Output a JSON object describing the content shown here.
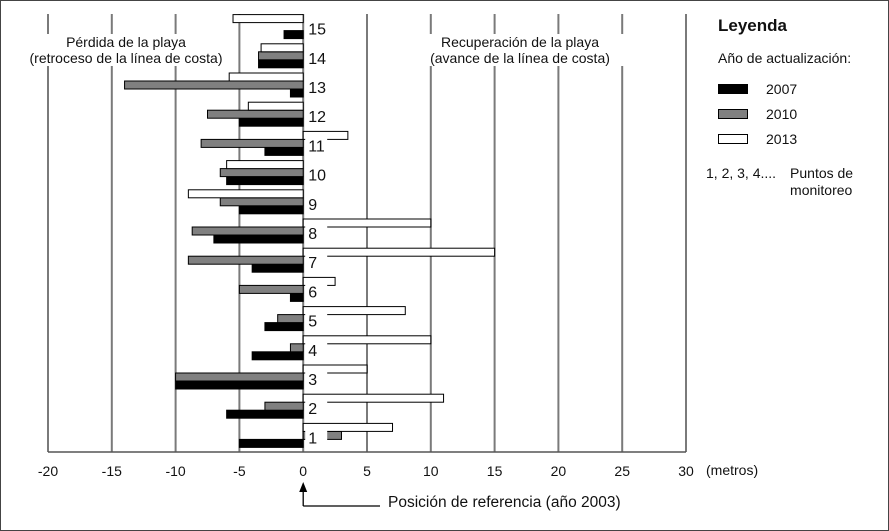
{
  "chart_data": {
    "type": "bar",
    "orientation": "horizontal",
    "categories": [
      "1",
      "2",
      "3",
      "4",
      "5",
      "6",
      "7",
      "8",
      "9",
      "10",
      "11",
      "12",
      "13",
      "14",
      "15"
    ],
    "series": [
      {
        "name": "2007",
        "color": "#000000",
        "values": [
          -5,
          -6,
          -10,
          -4,
          -3,
          -1,
          -4,
          -7,
          -5,
          -6,
          -3,
          -5,
          -1,
          -3.5,
          -1.5
        ]
      },
      {
        "name": "2010",
        "color": "#808080",
        "values": [
          3,
          -3,
          -10,
          -1,
          -2,
          -5,
          -9,
          -8.7,
          -6.5,
          -6.5,
          -8,
          -7.5,
          -14,
          -3.5,
          0
        ]
      },
      {
        "name": "2013",
        "color": "#ffffff",
        "values": [
          7,
          11,
          5,
          10,
          8,
          2.5,
          15,
          10,
          -9,
          -6,
          3.5,
          -4.3,
          -5.8,
          -3.3,
          -5.5
        ]
      }
    ],
    "xlim": [
      -20,
      30
    ],
    "xticks": [
      -20,
      -15,
      -10,
      -5,
      0,
      5,
      10,
      15,
      20,
      25,
      30
    ],
    "xtick_labels": [
      "-20",
      "-15",
      "-10",
      "-5",
      "0",
      "5",
      "10",
      "15",
      "20",
      "25",
      "30"
    ],
    "xlabel": "(metros)",
    "left_annotation": [
      "Pérdida de la playa",
      "(retroceso de la línea de costa)"
    ],
    "right_annotation": [
      "Recuperación de  la playa",
      "(avance de la línea de costa)"
    ],
    "reference_label": "Posición de referencia (año 2003)",
    "grid": true
  },
  "legend": {
    "title": "Leyenda",
    "subtitle": "Año de actualización:",
    "entries": [
      {
        "label": "2007",
        "color": "#000000"
      },
      {
        "label": "2010",
        "color": "#808080"
      },
      {
        "label": "2013",
        "color": "#ffffff"
      }
    ],
    "points_label": "1, 2, 3, 4....",
    "points_desc_1": "Puntos de",
    "points_desc_2": "monitoreo"
  }
}
